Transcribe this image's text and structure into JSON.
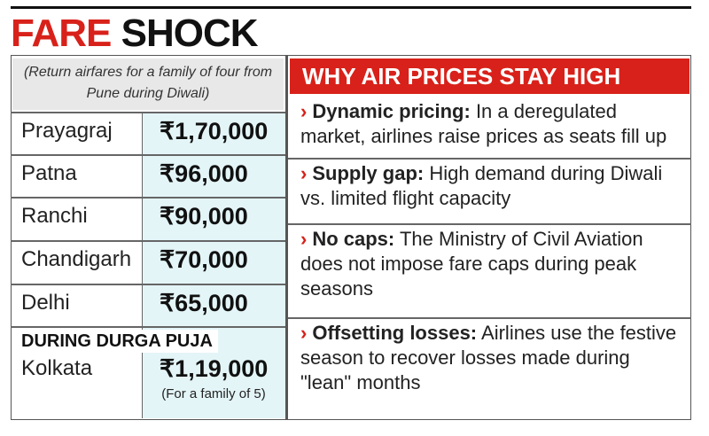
{
  "header": {
    "title_red": "FARE",
    "title_black": "SHOCK"
  },
  "table": {
    "note": "(Return airfares for a family of four from Pune during Diwali)",
    "rows": [
      [
        "Prayagraj",
        "₹1,70,000"
      ],
      [
        "Patna",
        "₹96,000"
      ],
      [
        "Ranchi",
        "₹90,000"
      ],
      [
        "Chandigarh",
        "₹70,000"
      ],
      [
        "Delhi",
        "₹65,000"
      ]
    ],
    "section": "DURING DURGA PUJA",
    "extra_row": [
      "Kolkata",
      "₹1,19,000"
    ],
    "extra_note": "(For a family of 5)"
  },
  "panel": {
    "title": "WHY AIR PRICES STAY HIGH",
    "points": [
      {
        "label": "Dynamic pricing:",
        "text": "In a deregulated market, airlines raise prices as seats fill up"
      },
      {
        "label": "Supply gap:",
        "text": "High demand during Diwali vs. limited flight capacity"
      },
      {
        "label": "No caps:",
        "text": "The Ministry of Civil Aviation does not impose fare caps during peak seasons"
      },
      {
        "label": "Offsetting losses:",
        "text": "Airlines use the festive season to recover losses made during \"lean\" months"
      }
    ]
  }
}
